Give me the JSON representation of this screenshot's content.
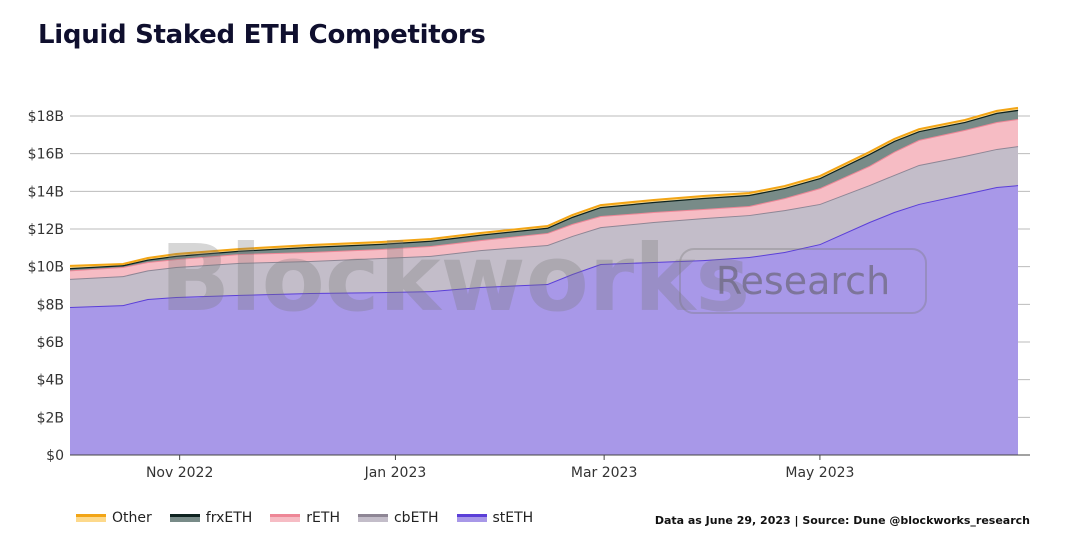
{
  "title": "Liquid Staked ETH Competitors",
  "source_note": "Data as June 29, 2023 | Source: Dune @blockworks_research",
  "watermark": {
    "brand": "Blockworks",
    "tag": "Research"
  },
  "chart_data": {
    "type": "area",
    "stacked": true,
    "title": "Liquid Staked ETH Competitors",
    "xlabel": "",
    "ylabel": "",
    "ylim": [
      0,
      18
    ],
    "y_unit": "B USD",
    "y_ticks": [
      "$0",
      "$2B",
      "$4B",
      "$6B",
      "$8B",
      "$10B",
      "$12B",
      "$14B",
      "$16B",
      "$18B"
    ],
    "x_ticks": [
      {
        "date": "2022-11-01",
        "label": "Nov 2022"
      },
      {
        "date": "2023-01-01",
        "label": "Jan 2023"
      },
      {
        "date": "2023-03-01",
        "label": "Mar 2023"
      },
      {
        "date": "2023-05-01",
        "label": "May 2023"
      }
    ],
    "xlim": [
      "2022-10-01",
      "2023-06-26"
    ],
    "grid": true,
    "legend_position": "bottom-left",
    "x": [
      "2022-10-01",
      "2022-10-16",
      "2022-10-23",
      "2022-10-31",
      "2022-11-18",
      "2022-12-08",
      "2022-12-28",
      "2023-01-11",
      "2023-01-25",
      "2023-02-13",
      "2023-02-20",
      "2023-02-28",
      "2023-03-15",
      "2023-03-29",
      "2023-04-11",
      "2023-04-21",
      "2023-05-01",
      "2023-05-15",
      "2023-05-22",
      "2023-05-29",
      "2023-06-11",
      "2023-06-20",
      "2023-06-26"
    ],
    "series": [
      {
        "name": "stETH",
        "fill": "#a898e8",
        "line": "#5b3fd8",
        "values": [
          7.86,
          7.96,
          8.28,
          8.39,
          8.5,
          8.6,
          8.65,
          8.7,
          8.92,
          9.08,
          9.61,
          10.14,
          10.25,
          10.35,
          10.51,
          10.78,
          11.2,
          12.37,
          12.9,
          13.33,
          13.86,
          14.23,
          14.33
        ]
      },
      {
        "name": "cbETH",
        "fill": "#c3bdc9",
        "line": "#8e8695",
        "values": [
          1.49,
          1.54,
          1.52,
          1.59,
          1.7,
          1.7,
          1.81,
          1.87,
          1.96,
          2.07,
          2.02,
          1.96,
          2.12,
          2.23,
          2.23,
          2.22,
          2.13,
          1.96,
          1.97,
          2.07,
          2.02,
          2.02,
          2.07
        ]
      },
      {
        "name": "rETH",
        "fill": "#f6bcc4",
        "line": "#ee8797",
        "values": [
          0.45,
          0.48,
          0.45,
          0.42,
          0.47,
          0.48,
          0.48,
          0.53,
          0.53,
          0.64,
          0.64,
          0.59,
          0.53,
          0.48,
          0.48,
          0.64,
          0.84,
          1.02,
          1.23,
          1.33,
          1.38,
          1.43,
          1.44
        ]
      },
      {
        "name": "frxETH",
        "fill": "#788b88",
        "line": "#0e2320",
        "values": [
          0.13,
          0.1,
          0.13,
          0.18,
          0.18,
          0.28,
          0.28,
          0.28,
          0.29,
          0.28,
          0.38,
          0.48,
          0.54,
          0.59,
          0.59,
          0.54,
          0.54,
          0.64,
          0.58,
          0.47,
          0.43,
          0.49,
          0.49
        ]
      },
      {
        "name": "Other",
        "fill": "#fdd98b",
        "line": "#f2a516",
        "values": [
          0.11,
          0.06,
          0.08,
          0.09,
          0.09,
          0.09,
          0.09,
          0.09,
          0.09,
          0.09,
          0.09,
          0.1,
          0.1,
          0.1,
          0.1,
          0.1,
          0.1,
          0.1,
          0.1,
          0.1,
          0.1,
          0.1,
          0.1
        ]
      }
    ],
    "legend_order": [
      "Other",
      "frxETH",
      "rETH",
      "cbETH",
      "stETH"
    ]
  }
}
